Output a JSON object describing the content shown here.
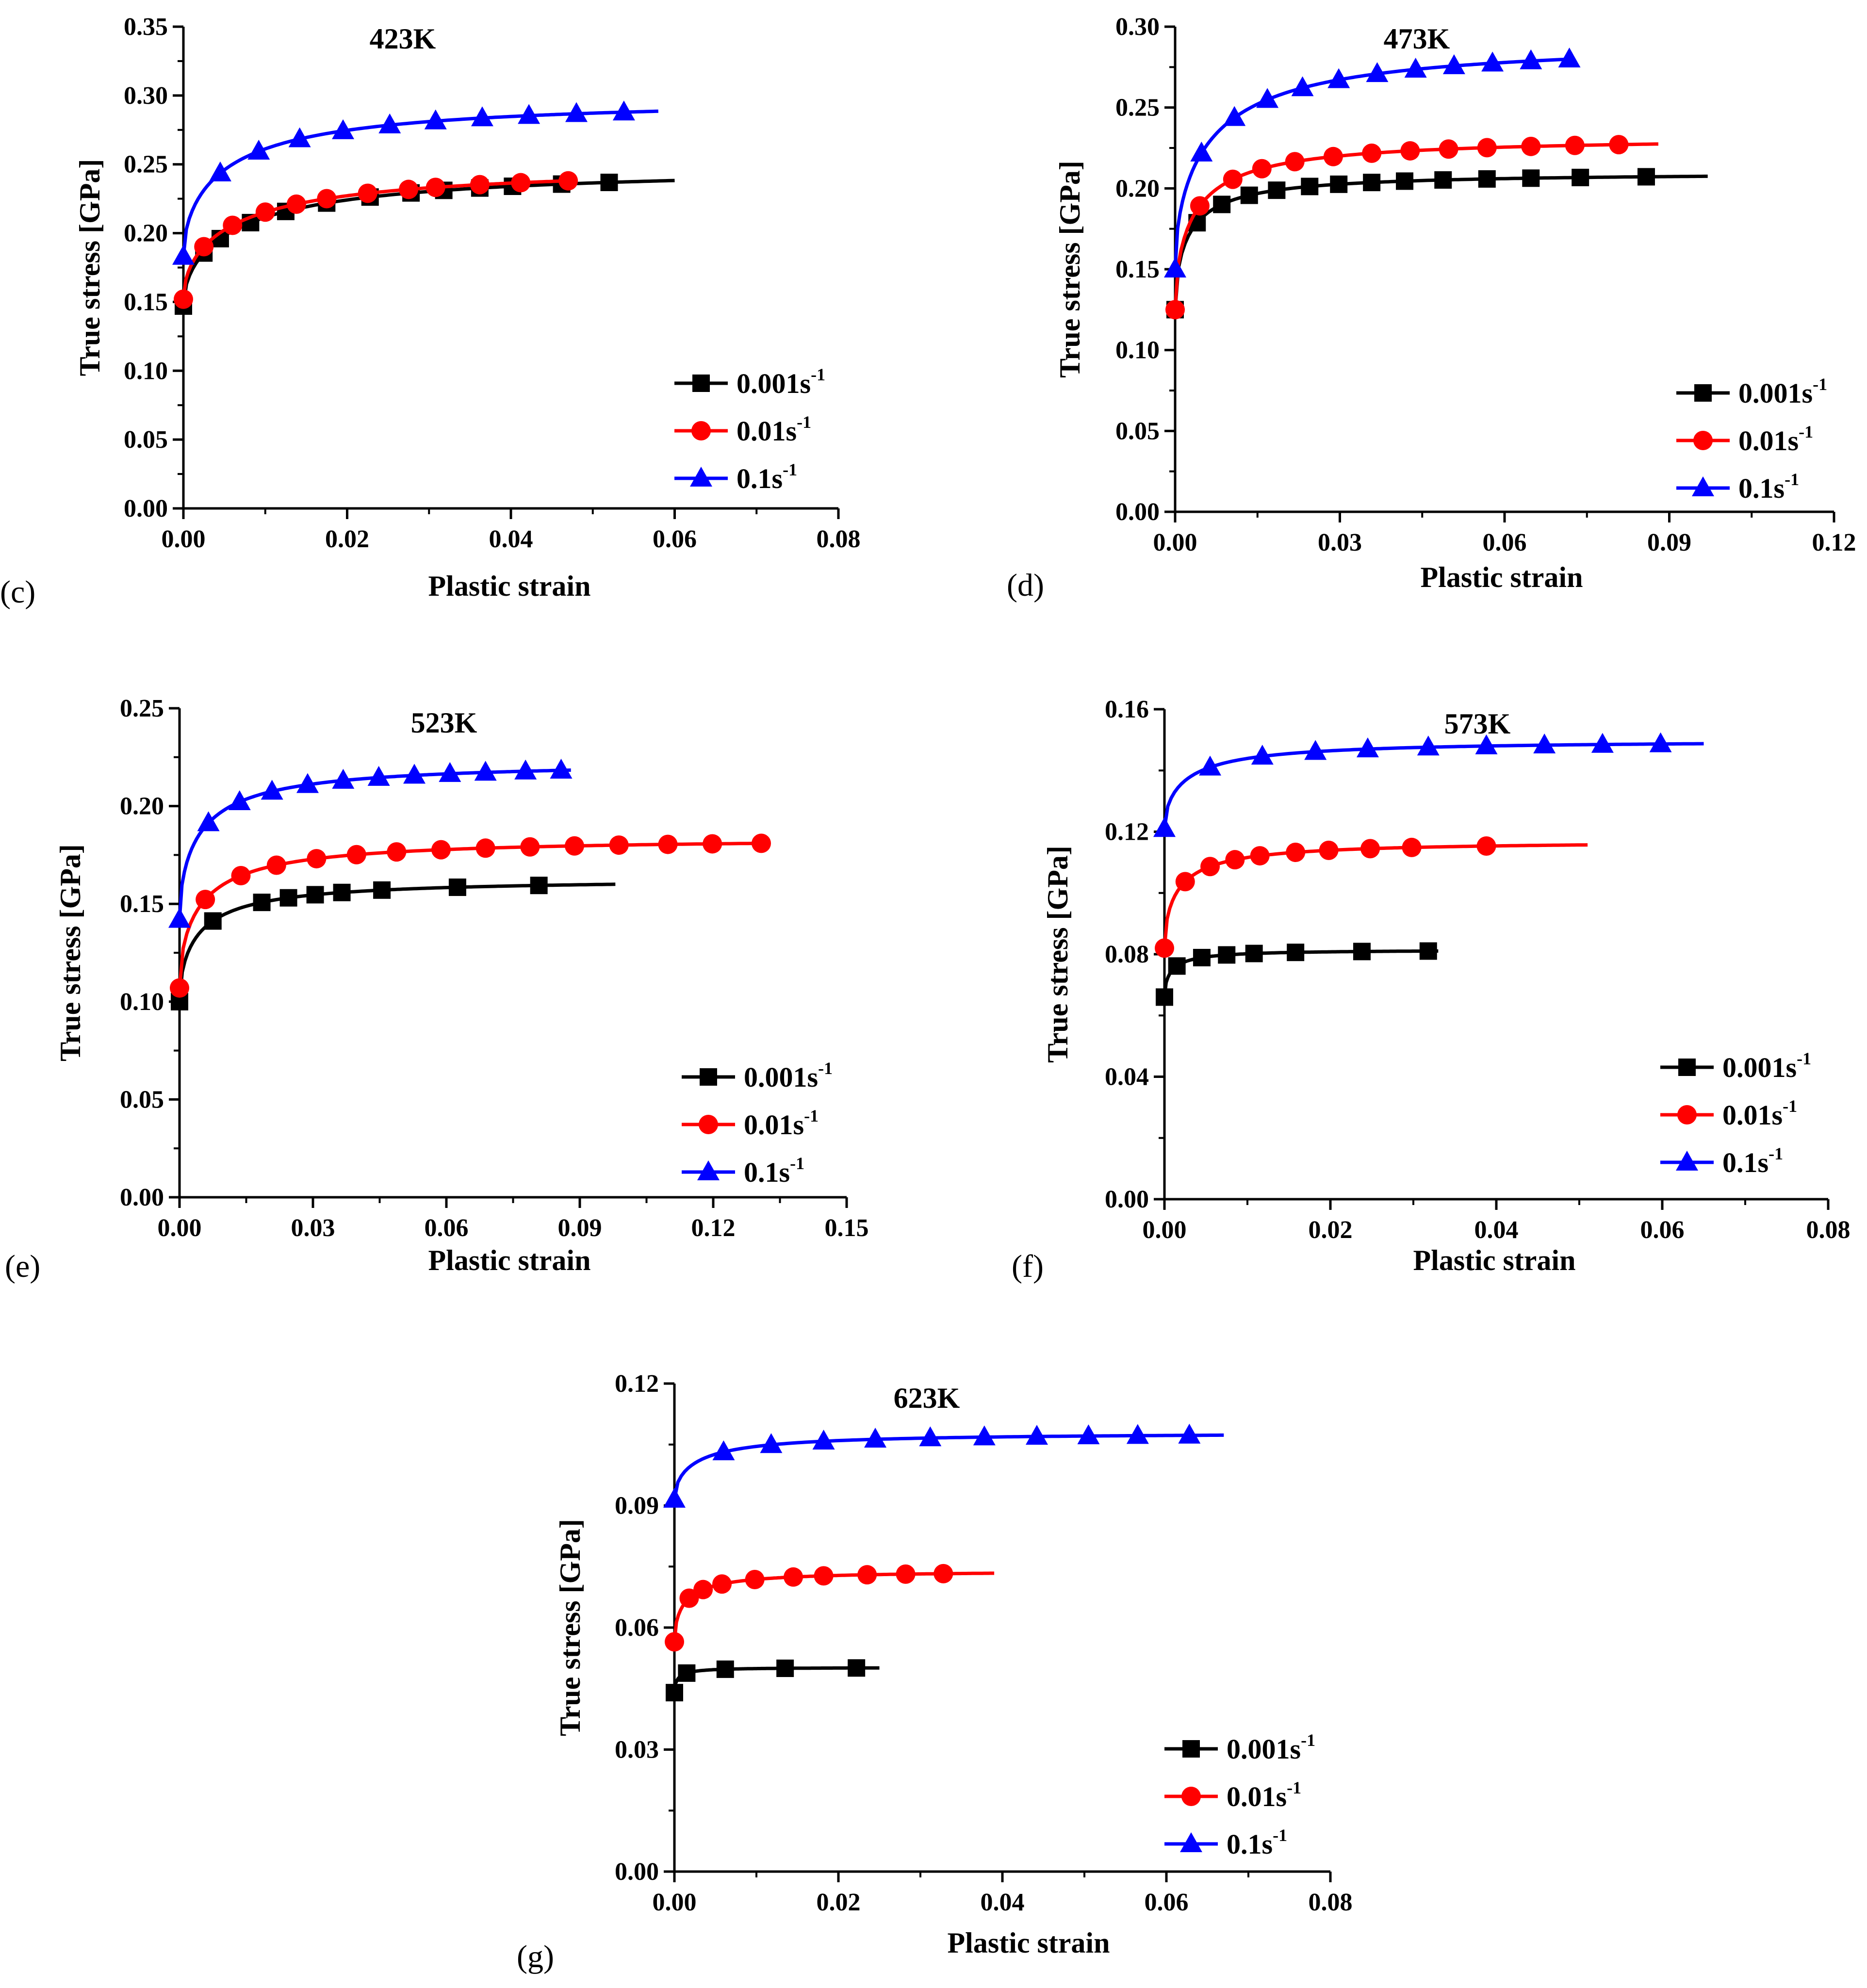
{
  "figure": {
    "colors": {
      "black": "#000000",
      "red": "#ff0000",
      "blue": "#0000ff"
    },
    "legend_entries": [
      {
        "label": "0.001s",
        "sup": "-1",
        "marker": "square",
        "color": "#000000"
      },
      {
        "label": "0.01s",
        "sup": "-1",
        "marker": "circle",
        "color": "#ff0000"
      },
      {
        "label": "0.1s",
        "sup": "-1",
        "marker": "triangle",
        "color": "#0000ff"
      }
    ]
  },
  "chart_data": [
    {
      "panel": "(c)",
      "type": "line",
      "title": "423K",
      "xlabel": "Plastic strain",
      "ylabel": "True stress [GPa]",
      "xlim": [
        0,
        0.08
      ],
      "ylim": [
        0,
        0.35
      ],
      "xticks": [
        "0.00",
        "0.02",
        "0.04",
        "0.06",
        "0.08"
      ],
      "yticks": [
        "0.00",
        "0.05",
        "0.10",
        "0.15",
        "0.20",
        "0.25",
        "0.30",
        "0.35"
      ],
      "series": [
        {
          "name": "0.001s-1",
          "color": "#000000",
          "marker": "square",
          "a": 0.147,
          "b": 0.102,
          "c": 0.015,
          "xmax": 0.06,
          "markers_x": [
            0,
            0.0025,
            0.0045,
            0.0082,
            0.0125,
            0.0175,
            0.0228,
            0.0278,
            0.0318,
            0.0362,
            0.0402,
            0.0462,
            0.052
          ]
        },
        {
          "name": "0.01s-1",
          "color": "#ff0000",
          "marker": "circle",
          "a": 0.152,
          "b": 0.098,
          "c": 0.014,
          "xmax": 0.047,
          "markers_x": [
            0,
            0.0025,
            0.006,
            0.01,
            0.0138,
            0.0175,
            0.0225,
            0.0275,
            0.0308,
            0.0362,
            0.0412,
            0.047
          ]
        },
        {
          "name": "0.1s-1",
          "color": "#0000ff",
          "marker": "triangle",
          "a": 0.183,
          "b": 0.116,
          "c": 0.012,
          "xmax": 0.058,
          "markers_x": [
            0,
            0.0045,
            0.0092,
            0.0142,
            0.0195,
            0.0252,
            0.0308,
            0.0365,
            0.0422,
            0.048,
            0.0538
          ]
        }
      ]
    },
    {
      "panel": "(d)",
      "type": "line",
      "title": "473K",
      "xlabel": "Plastic strain",
      "ylabel": "True stress [GPa]",
      "xlim": [
        0,
        0.12
      ],
      "ylim": [
        0,
        0.3
      ],
      "xticks": [
        "0.00",
        "0.03",
        "0.06",
        "0.09",
        "0.12"
      ],
      "yticks": [
        "0.00",
        "0.05",
        "0.10",
        "0.15",
        "0.20",
        "0.25",
        "0.30"
      ],
      "series": [
        {
          "name": "0.001s-1",
          "color": "#000000",
          "marker": "square",
          "a": 0.125,
          "b": 0.085,
          "c": 0.006,
          "xmax": 0.097,
          "markers_x": [
            0,
            0.004,
            0.0085,
            0.0135,
            0.0185,
            0.0245,
            0.0298,
            0.0358,
            0.0418,
            0.0488,
            0.0568,
            0.0648,
            0.0738,
            0.0858
          ]
        },
        {
          "name": "0.01s-1",
          "color": "#ff0000",
          "marker": "circle",
          "a": 0.125,
          "b": 0.107,
          "c": 0.008,
          "xmax": 0.088,
          "markers_x": [
            0,
            0.0045,
            0.0105,
            0.0158,
            0.0218,
            0.0288,
            0.0358,
            0.0428,
            0.0498,
            0.0568,
            0.0648,
            0.0728,
            0.0808
          ]
        },
        {
          "name": "0.1s-1",
          "color": "#0000ff",
          "marker": "triangle",
          "a": 0.15,
          "b": 0.142,
          "c": 0.014,
          "xmax": 0.072,
          "markers_x": [
            0,
            0.0048,
            0.0108,
            0.0168,
            0.0232,
            0.0298,
            0.0368,
            0.0438,
            0.0508,
            0.0578,
            0.0648,
            0.0718
          ]
        }
      ]
    },
    {
      "panel": "(e)",
      "type": "line",
      "title": "523K",
      "xlabel": "Plastic strain",
      "ylabel": "True stress [GPa]",
      "xlim": [
        0,
        0.15
      ],
      "ylim": [
        0,
        0.25
      ],
      "xticks": [
        "0.00",
        "0.03",
        "0.06",
        "0.09",
        "0.12",
        "0.15"
      ],
      "yticks": [
        "0.00",
        "0.05",
        "0.10",
        "0.15",
        "0.20",
        "0.25"
      ],
      "series": [
        {
          "name": "0.001s-1",
          "color": "#000000",
          "marker": "square",
          "a": 0.1,
          "b": 0.063,
          "c": 0.01,
          "xmax": 0.098,
          "markers_x": [
            0,
            0.0075,
            0.0185,
            0.0245,
            0.0305,
            0.0365,
            0.0455,
            0.0625,
            0.0808
          ]
        },
        {
          "name": "0.01s-1",
          "color": "#ff0000",
          "marker": "circle",
          "a": 0.107,
          "b": 0.077,
          "c": 0.011,
          "xmax": 0.131,
          "markers_x": [
            0,
            0.0058,
            0.0138,
            0.0218,
            0.0308,
            0.0398,
            0.0488,
            0.0588,
            0.0688,
            0.0788,
            0.0888,
            0.0988,
            0.1098,
            0.1198,
            0.1308
          ]
        },
        {
          "name": "0.1s-1",
          "color": "#0000ff",
          "marker": "triangle",
          "a": 0.142,
          "b": 0.081,
          "c": 0.011,
          "xmax": 0.088,
          "markers_x": [
            0,
            0.0065,
            0.0135,
            0.0208,
            0.0288,
            0.0368,
            0.0448,
            0.0528,
            0.0608,
            0.0688,
            0.0778,
            0.0858
          ]
        }
      ]
    },
    {
      "panel": "(f)",
      "type": "line",
      "title": "573K",
      "xlabel": "Plastic strain",
      "ylabel": "True stress [GPa]",
      "xlim": [
        0,
        0.08
      ],
      "ylim": [
        0,
        0.16
      ],
      "xticks": [
        "0.00",
        "0.02",
        "0.04",
        "0.06",
        "0.08"
      ],
      "yticks": [
        "0.00",
        "0.04",
        "0.08",
        "0.12",
        "0.16"
      ],
      "series": [
        {
          "name": "0.001s-1",
          "color": "#000000",
          "marker": "square",
          "a": 0.066,
          "b": 0.0155,
          "c": 0.002,
          "xmax": 0.033,
          "markers_x": [
            0,
            0.0015,
            0.0045,
            0.0075,
            0.0108,
            0.0158,
            0.0238,
            0.0318
          ]
        },
        {
          "name": "0.01s-1",
          "color": "#ff0000",
          "marker": "circle",
          "a": 0.082,
          "b": 0.035,
          "c": 0.004,
          "xmax": 0.051,
          "markers_x": [
            0,
            0.0025,
            0.0055,
            0.0085,
            0.0115,
            0.0158,
            0.0198,
            0.0248,
            0.0298,
            0.0388
          ]
        },
        {
          "name": "0.1s-1",
          "color": "#0000ff",
          "marker": "triangle",
          "a": 0.121,
          "b": 0.029,
          "c": 0.006,
          "xmax": 0.065,
          "markers_x": [
            0,
            0.0055,
            0.0118,
            0.0182,
            0.0245,
            0.0318,
            0.0388,
            0.0458,
            0.0528,
            0.0598
          ]
        }
      ]
    },
    {
      "panel": "(g)",
      "type": "line",
      "title": "623K",
      "xlabel": "Plastic strain",
      "ylabel": "True stress [GPa]",
      "xlim": [
        0,
        0.08
      ],
      "ylim": [
        0,
        0.12
      ],
      "xticks": [
        "0.00",
        "0.02",
        "0.04",
        "0.06",
        "0.08"
      ],
      "yticks": [
        "0.00",
        "0.03",
        "0.06",
        "0.09",
        "0.12"
      ],
      "series": [
        {
          "name": "0.001s-1",
          "color": "#000000",
          "marker": "square",
          "a": 0.044,
          "b": 0.0062,
          "c": 0.001,
          "xmax": 0.025,
          "markers_x": [
            0,
            0.0015,
            0.0062,
            0.0135,
            0.0222
          ]
        },
        {
          "name": "0.01s-1",
          "color": "#ff0000",
          "marker": "circle",
          "a": 0.0565,
          "b": 0.0175,
          "c": 0.003,
          "xmax": 0.039,
          "markers_x": [
            0,
            0.0018,
            0.0035,
            0.0058,
            0.0098,
            0.0145,
            0.0182,
            0.0235,
            0.0282,
            0.0328
          ]
        },
        {
          "name": "0.1s-1",
          "color": "#0000ff",
          "marker": "triangle",
          "a": 0.0915,
          "b": 0.0165,
          "c": 0.006,
          "xmax": 0.067,
          "markers_x": [
            0,
            0.006,
            0.0118,
            0.0182,
            0.0245,
            0.0312,
            0.0378,
            0.0442,
            0.0505,
            0.0565,
            0.0628
          ]
        }
      ]
    }
  ]
}
